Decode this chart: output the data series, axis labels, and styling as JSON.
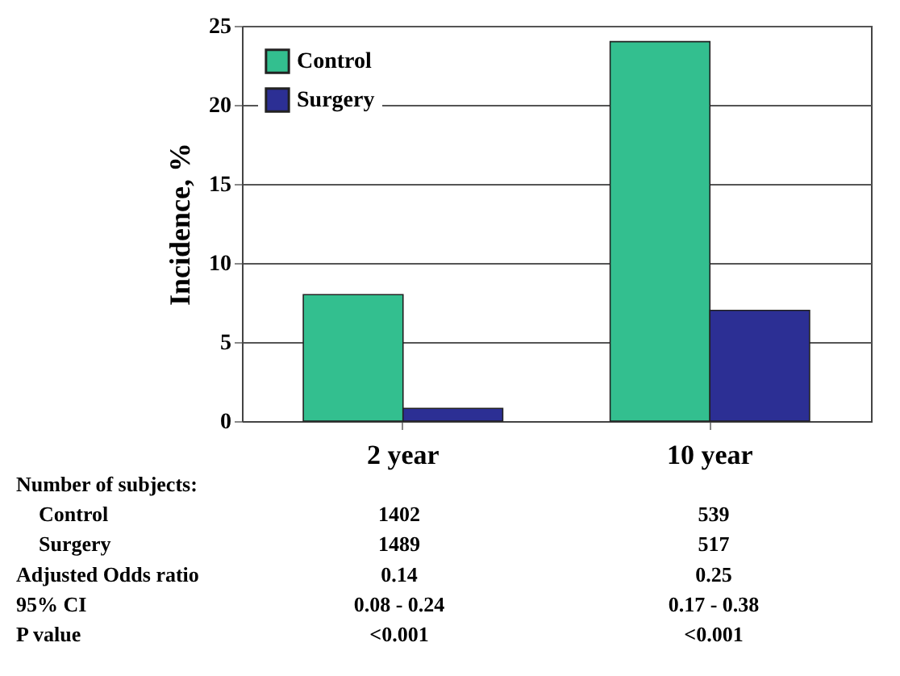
{
  "chart_data": {
    "type": "bar",
    "ylabel": "Incidence, %",
    "categories": [
      "2 year",
      "10 year"
    ],
    "series": [
      {
        "name": "Control",
        "color": "#33bf8f",
        "values": [
          8,
          24
        ]
      },
      {
        "name": "Surgery",
        "color": "#2c2f94",
        "values": [
          0.8,
          7
        ]
      }
    ],
    "ylim": [
      0,
      25
    ],
    "yticks": [
      0,
      5,
      10,
      15,
      20,
      25
    ],
    "grid": "y",
    "legend": "top left",
    "annotations": [
      "Number of subjects:",
      "Control",
      "1402",
      "539",
      "Surgery",
      "1489",
      "517",
      "Adjusted Odds ratio",
      "0.14",
      "0.25",
      "95% CI",
      "0.08 - 0.24",
      "0.17 - 0.38",
      "P value",
      "<0.001",
      "<0.001"
    ]
  }
}
